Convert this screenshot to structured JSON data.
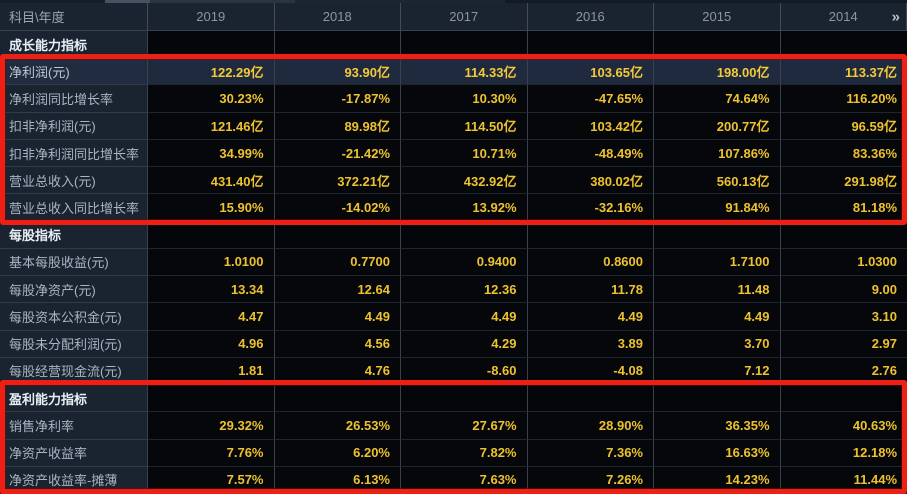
{
  "colors": {
    "value_gold": "#eec22f",
    "annotation_red": "#ee2016",
    "row_highlight_bg": "#1f2a3e",
    "panel_navy": "#1a2330"
  },
  "header": {
    "corner_label": "科目\\年度",
    "years": [
      "2019",
      "2018",
      "2017",
      "2016",
      "2015",
      "2014"
    ],
    "pager_icon": "»"
  },
  "table": {
    "rows": [
      {
        "type": "section",
        "label": "成长能力指标"
      },
      {
        "type": "data",
        "label": "净利润(元)",
        "highlight": true,
        "values": [
          "122.29亿",
          "93.90亿",
          "114.33亿",
          "103.65亿",
          "198.00亿",
          "113.37亿"
        ]
      },
      {
        "type": "data",
        "label": "净利润同比增长率",
        "values": [
          "30.23%",
          "-17.87%",
          "10.30%",
          "-47.65%",
          "74.64%",
          "116.20%"
        ]
      },
      {
        "type": "data",
        "label": "扣非净利润(元)",
        "values": [
          "121.46亿",
          "89.98亿",
          "114.50亿",
          "103.42亿",
          "200.77亿",
          "96.59亿"
        ]
      },
      {
        "type": "data",
        "label": "扣非净利润同比增长率",
        "values": [
          "34.99%",
          "-21.42%",
          "10.71%",
          "-48.49%",
          "107.86%",
          "83.36%"
        ]
      },
      {
        "type": "data",
        "label": "营业总收入(元)",
        "values": [
          "431.40亿",
          "372.21亿",
          "432.92亿",
          "380.02亿",
          "560.13亿",
          "291.98亿"
        ]
      },
      {
        "type": "data",
        "label": "营业总收入同比增长率",
        "values": [
          "15.90%",
          "-14.02%",
          "13.92%",
          "-32.16%",
          "91.84%",
          "81.18%"
        ]
      },
      {
        "type": "section",
        "label": "每股指标"
      },
      {
        "type": "data",
        "label": "基本每股收益(元)",
        "values": [
          "1.0100",
          "0.7700",
          "0.9400",
          "0.8600",
          "1.7100",
          "1.0300"
        ]
      },
      {
        "type": "data",
        "label": "每股净资产(元)",
        "values": [
          "13.34",
          "12.64",
          "12.36",
          "11.78",
          "11.48",
          "9.00"
        ]
      },
      {
        "type": "data",
        "label": "每股资本公积金(元)",
        "values": [
          "4.47",
          "4.49",
          "4.49",
          "4.49",
          "4.49",
          "3.10"
        ]
      },
      {
        "type": "data",
        "label": "每股未分配利润(元)",
        "values": [
          "4.96",
          "4.56",
          "4.29",
          "3.89",
          "3.70",
          "2.97"
        ]
      },
      {
        "type": "data",
        "label": "每股经营现金流(元)",
        "values": [
          "1.81",
          "4.76",
          "-8.60",
          "-4.08",
          "7.12",
          "2.76"
        ]
      },
      {
        "type": "section",
        "label": "盈利能力指标"
      },
      {
        "type": "data",
        "label": "销售净利率",
        "values": [
          "29.32%",
          "26.53%",
          "27.67%",
          "28.90%",
          "36.35%",
          "40.63%"
        ]
      },
      {
        "type": "data",
        "label": "净资产收益率",
        "values": [
          "7.76%",
          "6.20%",
          "7.82%",
          "7.36%",
          "16.63%",
          "12.18%"
        ]
      },
      {
        "type": "data",
        "label": "净资产收益率-摊薄",
        "values": [
          "7.57%",
          "6.13%",
          "7.63%",
          "7.26%",
          "14.23%",
          "11.44%"
        ]
      }
    ]
  },
  "annotations": {
    "boxes": [
      {
        "name": "growth-indicators-box",
        "color": "#ee2016"
      },
      {
        "name": "profitability-indicators-box",
        "color": "#ee2016"
      }
    ]
  }
}
